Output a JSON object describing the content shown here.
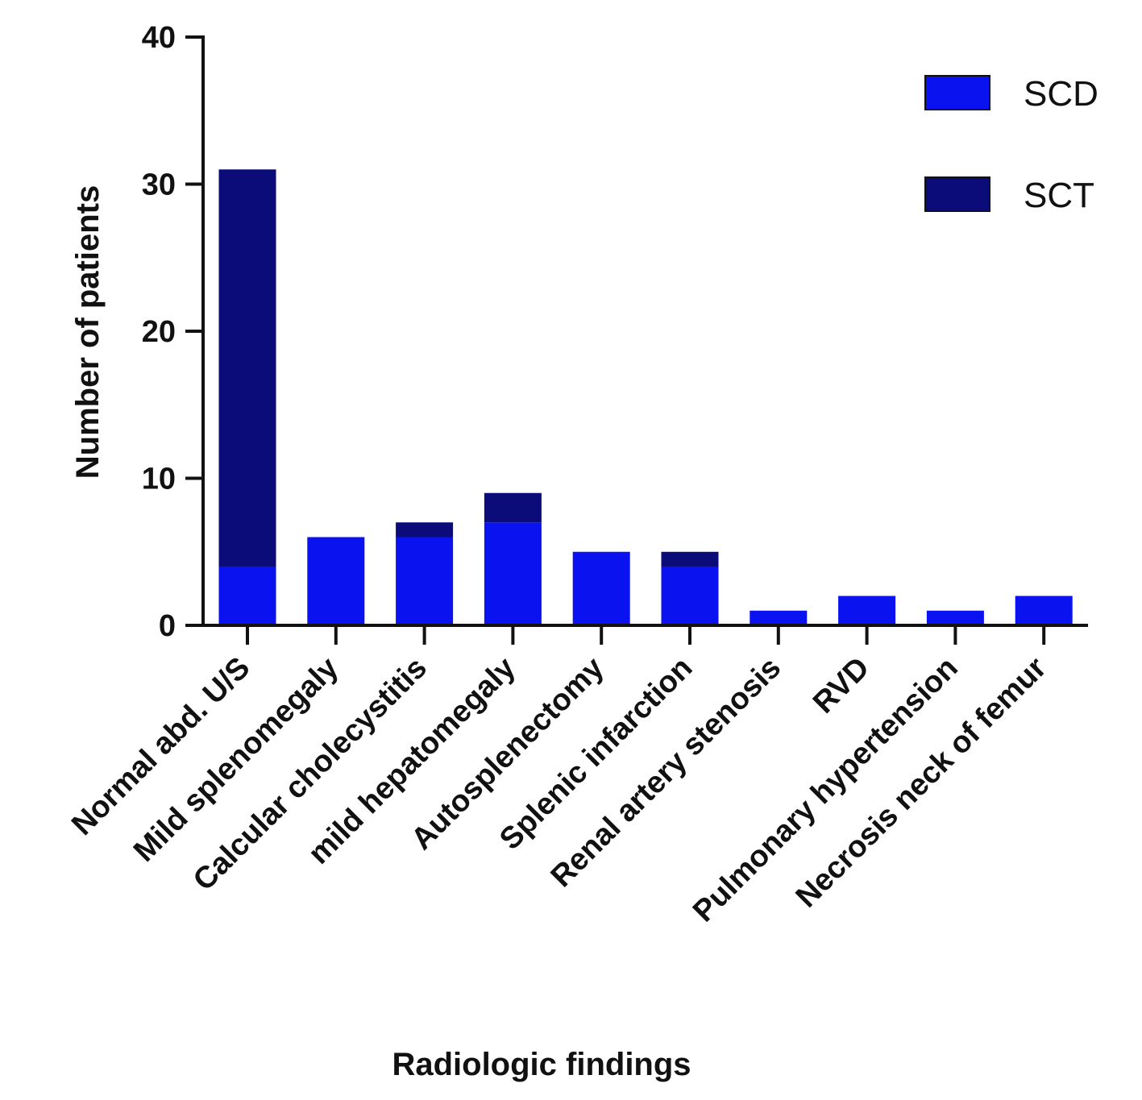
{
  "chart_data": {
    "type": "bar",
    "stacked": true,
    "categories": [
      "Normal abd. U/S",
      "Mild splenomegaly",
      "Calcular cholecystitis",
      "mild hepatomegaly",
      "Autosplenectomy",
      "Splenic infarction",
      "Renal artery stenosis",
      "RVD",
      "Pulmonary hypertension",
      "Necrosis neck of femur"
    ],
    "series": [
      {
        "name": "SCD",
        "color": "#0a12f0",
        "values": [
          4,
          6,
          6,
          7,
          5,
          4,
          1,
          2,
          1,
          2
        ]
      },
      {
        "name": "SCT",
        "color": "#0b0b7a",
        "values": [
          27,
          0,
          1,
          2,
          0,
          1,
          0,
          0,
          0,
          0
        ]
      }
    ],
    "xlabel": "Radiologic findings",
    "ylabel": "Number of patients",
    "ylim": [
      0,
      40
    ],
    "yticks": [
      0,
      10,
      20,
      30,
      40
    ],
    "ytick_labels": [
      "0",
      "10",
      "20",
      "30",
      "40"
    ],
    "grid": false,
    "legend_position": "top-right"
  }
}
